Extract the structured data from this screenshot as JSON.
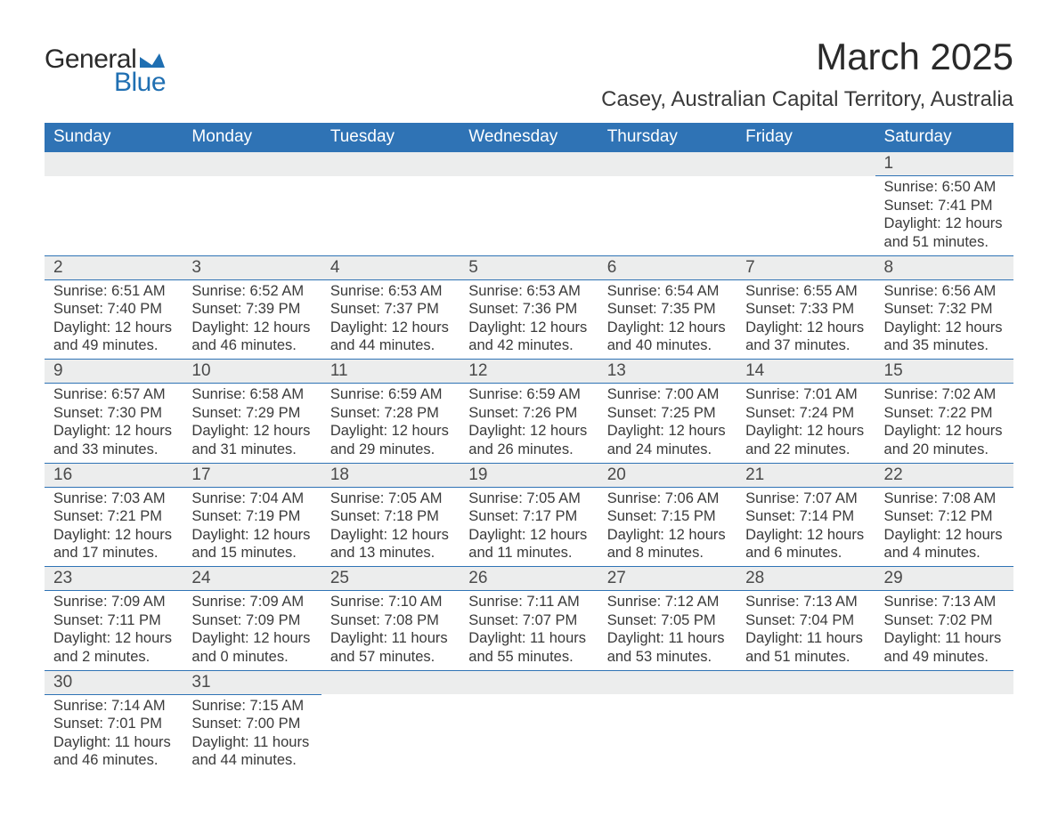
{
  "logo": {
    "word1": "General",
    "word2": "Blue",
    "shape_color": "#1f6fb2"
  },
  "header": {
    "month_title": "March 2025",
    "location": "Casey, Australian Capital Territory, Australia"
  },
  "styles": {
    "header_bg": "#2f73b5",
    "header_text": "#ffffff",
    "daynum_bg": "#eceded",
    "border_color": "#2f73b5",
    "body_text": "#3a3a3a",
    "font_family": "Arial",
    "title_fontsize_pt": 32,
    "location_fontsize_pt": 18,
    "th_fontsize_pt": 14,
    "daynum_fontsize_pt": 14,
    "detail_fontsize_pt": 12
  },
  "calendar": {
    "day_headers": [
      "Sunday",
      "Monday",
      "Tuesday",
      "Wednesday",
      "Thursday",
      "Friday",
      "Saturday"
    ],
    "weeks": [
      [
        null,
        null,
        null,
        null,
        null,
        null,
        {
          "n": "1",
          "sr": "Sunrise: 6:50 AM",
          "ss": "Sunset: 7:41 PM",
          "dl": "Daylight: 12 hours and 51 minutes."
        }
      ],
      [
        {
          "n": "2",
          "sr": "Sunrise: 6:51 AM",
          "ss": "Sunset: 7:40 PM",
          "dl": "Daylight: 12 hours and 49 minutes."
        },
        {
          "n": "3",
          "sr": "Sunrise: 6:52 AM",
          "ss": "Sunset: 7:39 PM",
          "dl": "Daylight: 12 hours and 46 minutes."
        },
        {
          "n": "4",
          "sr": "Sunrise: 6:53 AM",
          "ss": "Sunset: 7:37 PM",
          "dl": "Daylight: 12 hours and 44 minutes."
        },
        {
          "n": "5",
          "sr": "Sunrise: 6:53 AM",
          "ss": "Sunset: 7:36 PM",
          "dl": "Daylight: 12 hours and 42 minutes."
        },
        {
          "n": "6",
          "sr": "Sunrise: 6:54 AM",
          "ss": "Sunset: 7:35 PM",
          "dl": "Daylight: 12 hours and 40 minutes."
        },
        {
          "n": "7",
          "sr": "Sunrise: 6:55 AM",
          "ss": "Sunset: 7:33 PM",
          "dl": "Daylight: 12 hours and 37 minutes."
        },
        {
          "n": "8",
          "sr": "Sunrise: 6:56 AM",
          "ss": "Sunset: 7:32 PM",
          "dl": "Daylight: 12 hours and 35 minutes."
        }
      ],
      [
        {
          "n": "9",
          "sr": "Sunrise: 6:57 AM",
          "ss": "Sunset: 7:30 PM",
          "dl": "Daylight: 12 hours and 33 minutes."
        },
        {
          "n": "10",
          "sr": "Sunrise: 6:58 AM",
          "ss": "Sunset: 7:29 PM",
          "dl": "Daylight: 12 hours and 31 minutes."
        },
        {
          "n": "11",
          "sr": "Sunrise: 6:59 AM",
          "ss": "Sunset: 7:28 PM",
          "dl": "Daylight: 12 hours and 29 minutes."
        },
        {
          "n": "12",
          "sr": "Sunrise: 6:59 AM",
          "ss": "Sunset: 7:26 PM",
          "dl": "Daylight: 12 hours and 26 minutes."
        },
        {
          "n": "13",
          "sr": "Sunrise: 7:00 AM",
          "ss": "Sunset: 7:25 PM",
          "dl": "Daylight: 12 hours and 24 minutes."
        },
        {
          "n": "14",
          "sr": "Sunrise: 7:01 AM",
          "ss": "Sunset: 7:24 PM",
          "dl": "Daylight: 12 hours and 22 minutes."
        },
        {
          "n": "15",
          "sr": "Sunrise: 7:02 AM",
          "ss": "Sunset: 7:22 PM",
          "dl": "Daylight: 12 hours and 20 minutes."
        }
      ],
      [
        {
          "n": "16",
          "sr": "Sunrise: 7:03 AM",
          "ss": "Sunset: 7:21 PM",
          "dl": "Daylight: 12 hours and 17 minutes."
        },
        {
          "n": "17",
          "sr": "Sunrise: 7:04 AM",
          "ss": "Sunset: 7:19 PM",
          "dl": "Daylight: 12 hours and 15 minutes."
        },
        {
          "n": "18",
          "sr": "Sunrise: 7:05 AM",
          "ss": "Sunset: 7:18 PM",
          "dl": "Daylight: 12 hours and 13 minutes."
        },
        {
          "n": "19",
          "sr": "Sunrise: 7:05 AM",
          "ss": "Sunset: 7:17 PM",
          "dl": "Daylight: 12 hours and 11 minutes."
        },
        {
          "n": "20",
          "sr": "Sunrise: 7:06 AM",
          "ss": "Sunset: 7:15 PM",
          "dl": "Daylight: 12 hours and 8 minutes."
        },
        {
          "n": "21",
          "sr": "Sunrise: 7:07 AM",
          "ss": "Sunset: 7:14 PM",
          "dl": "Daylight: 12 hours and 6 minutes."
        },
        {
          "n": "22",
          "sr": "Sunrise: 7:08 AM",
          "ss": "Sunset: 7:12 PM",
          "dl": "Daylight: 12 hours and 4 minutes."
        }
      ],
      [
        {
          "n": "23",
          "sr": "Sunrise: 7:09 AM",
          "ss": "Sunset: 7:11 PM",
          "dl": "Daylight: 12 hours and 2 minutes."
        },
        {
          "n": "24",
          "sr": "Sunrise: 7:09 AM",
          "ss": "Sunset: 7:09 PM",
          "dl": "Daylight: 12 hours and 0 minutes."
        },
        {
          "n": "25",
          "sr": "Sunrise: 7:10 AM",
          "ss": "Sunset: 7:08 PM",
          "dl": "Daylight: 11 hours and 57 minutes."
        },
        {
          "n": "26",
          "sr": "Sunrise: 7:11 AM",
          "ss": "Sunset: 7:07 PM",
          "dl": "Daylight: 11 hours and 55 minutes."
        },
        {
          "n": "27",
          "sr": "Sunrise: 7:12 AM",
          "ss": "Sunset: 7:05 PM",
          "dl": "Daylight: 11 hours and 53 minutes."
        },
        {
          "n": "28",
          "sr": "Sunrise: 7:13 AM",
          "ss": "Sunset: 7:04 PM",
          "dl": "Daylight: 11 hours and 51 minutes."
        },
        {
          "n": "29",
          "sr": "Sunrise: 7:13 AM",
          "ss": "Sunset: 7:02 PM",
          "dl": "Daylight: 11 hours and 49 minutes."
        }
      ],
      [
        {
          "n": "30",
          "sr": "Sunrise: 7:14 AM",
          "ss": "Sunset: 7:01 PM",
          "dl": "Daylight: 11 hours and 46 minutes."
        },
        {
          "n": "31",
          "sr": "Sunrise: 7:15 AM",
          "ss": "Sunset: 7:00 PM",
          "dl": "Daylight: 11 hours and 44 minutes."
        },
        null,
        null,
        null,
        null,
        null
      ]
    ]
  }
}
